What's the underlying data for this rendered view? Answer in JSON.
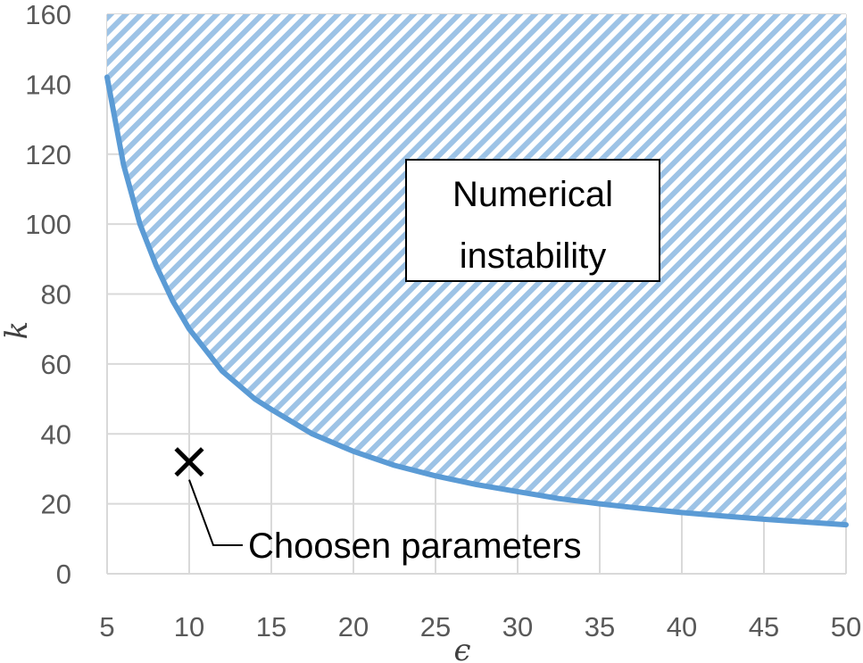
{
  "chart_data": {
    "type": "line",
    "xlabel": "ϵ",
    "ylabel": "k",
    "xlim": [
      5,
      50
    ],
    "ylim": [
      0,
      160
    ],
    "xticks": [
      5,
      10,
      15,
      20,
      25,
      30,
      35,
      40,
      45,
      50
    ],
    "yticks": [
      0,
      20,
      40,
      60,
      80,
      100,
      120,
      140,
      160
    ],
    "grid": true,
    "series": [
      {
        "color": "#5b9bd5",
        "x": [
          5,
          6,
          7,
          8,
          9,
          10,
          11,
          12,
          13,
          14,
          15,
          17.5,
          20,
          22.5,
          25,
          27.5,
          30,
          32.5,
          35,
          37.5,
          40,
          42.5,
          45,
          47.5,
          50
        ],
        "y": [
          142,
          117,
          100,
          88,
          78,
          70,
          64,
          58,
          54,
          50,
          47,
          40,
          35,
          31,
          28,
          25.5,
          23.5,
          21.5,
          20,
          18.7,
          17.5,
          16.5,
          15.6,
          14.8,
          14
        ]
      }
    ],
    "shaded_region": {
      "label": "Numerical instability",
      "label_lines": [
        "Numerical",
        "instability"
      ],
      "fill": "hatched above curve",
      "color": "#9dc3e6"
    },
    "point": {
      "x": 10,
      "y": 32,
      "marker": "x",
      "label": "Choosen parameters"
    }
  }
}
